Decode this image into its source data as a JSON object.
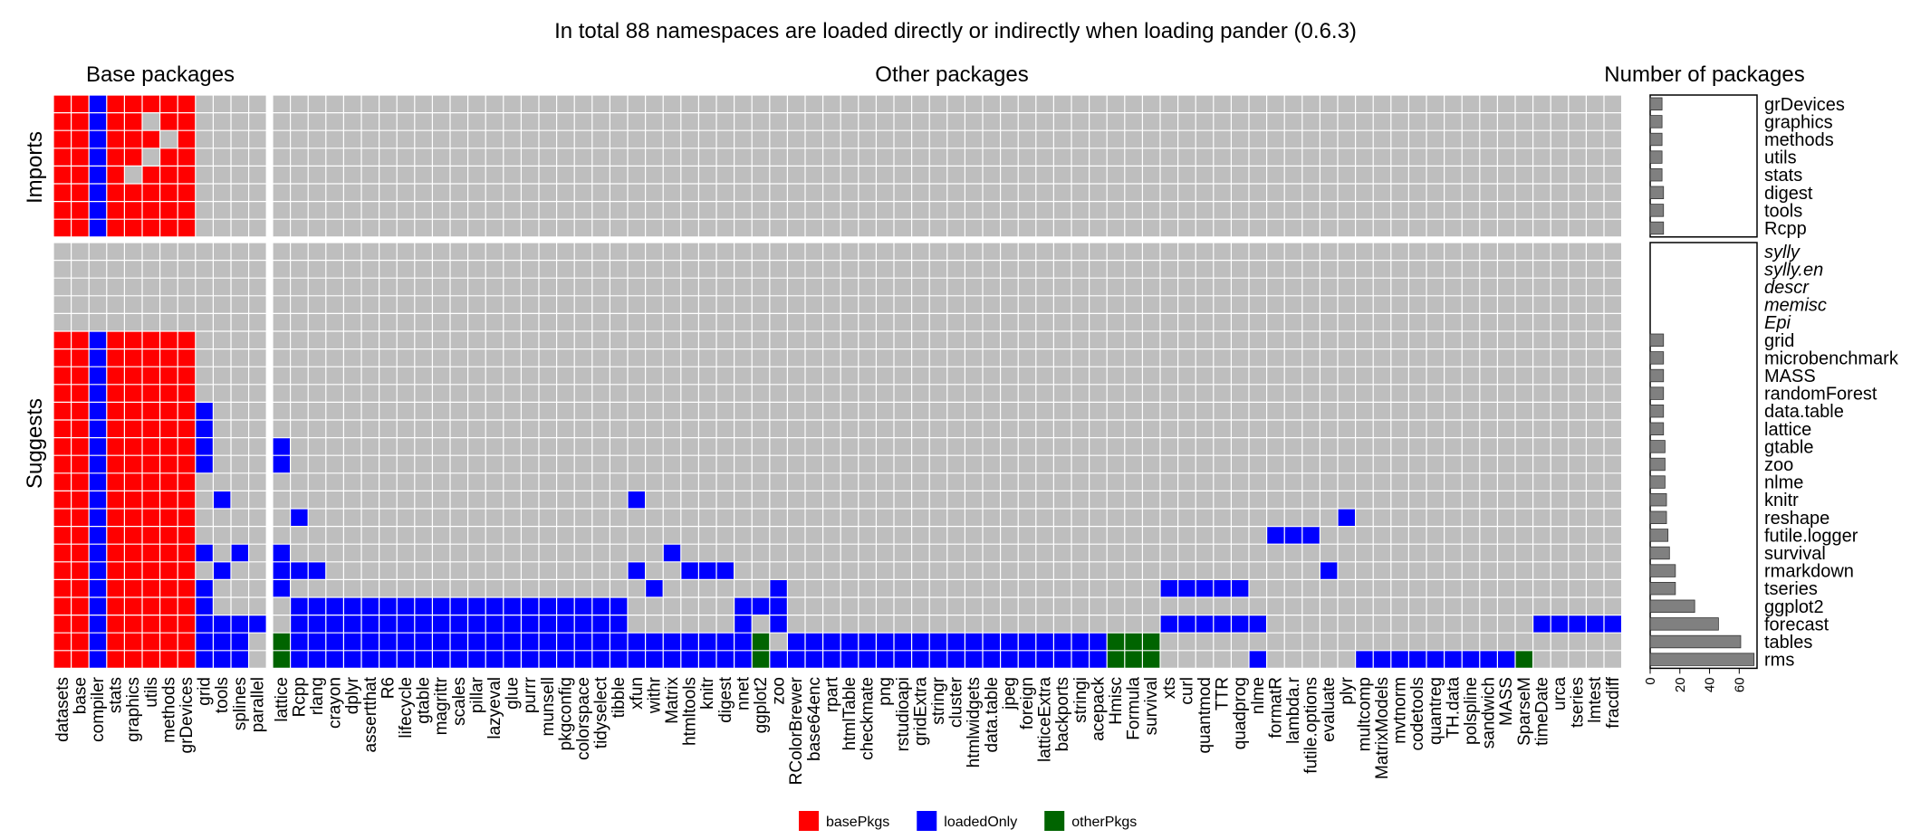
{
  "chart_data": {
    "type": "heatmap",
    "title": "In total 88 namespaces are loaded directly or indirectly when loading pander (0.6.3)",
    "panel_titles": {
      "base": "Base packages",
      "other": "Other packages",
      "count": "Number of packages"
    },
    "group_labels": {
      "imports": "Imports",
      "suggests": "Suggests"
    },
    "base_columns": [
      "datasets",
      "base",
      "compiler",
      "stats",
      "graphics",
      "utils",
      "methods",
      "grDevices",
      "grid",
      "tools",
      "splines",
      "parallel"
    ],
    "other_columns": [
      "lattice",
      "Rcpp",
      "rlang",
      "crayon",
      "dplyr",
      "assertthat",
      "R6",
      "lifecycle",
      "gtable",
      "magrittr",
      "scales",
      "pillar",
      "lazyeval",
      "glue",
      "purrr",
      "munsell",
      "pkgconfig",
      "colorspace",
      "tidyselect",
      "tibble",
      "xfun",
      "withr",
      "Matrix",
      "htmltools",
      "knitr",
      "digest",
      "nnet",
      "ggplot2",
      "zoo",
      "RColorBrewer",
      "base64enc",
      "rpart",
      "htmlTable",
      "checkmate",
      "png",
      "rstudioapi",
      "gridExtra",
      "stringr",
      "cluster",
      "htmlwidgets",
      "data.table",
      "jpeg",
      "foreign",
      "latticeExtra",
      "backports",
      "stringi",
      "acepack",
      "Hmisc",
      "Formula",
      "survival",
      "xts",
      "curl",
      "quantmod",
      "TTR",
      "quadprog",
      "nlme",
      "formatR",
      "lambda.r",
      "futile.options",
      "evaluate",
      "plyr",
      "multcomp",
      "MatrixModels",
      "mvtnorm",
      "codetools",
      "quantreg",
      "TH.data",
      "polspline",
      "sandwich",
      "MASS",
      "SparseM",
      "timeDate",
      "urca",
      "tseries",
      "lmtest",
      "fracdiff"
    ],
    "imports_rows": [
      "grDevices",
      "graphics",
      "methods",
      "utils",
      "stats",
      "digest",
      "tools",
      "Rcpp"
    ],
    "suggests_rows": [
      "sylly",
      "sylly.en",
      "descr",
      "memisc",
      "Epi",
      "grid",
      "microbenchmark",
      "MASS",
      "randomForest",
      "data.table",
      "lattice",
      "gtable",
      "zoo",
      "nlme",
      "knitr",
      "reshape",
      "futile.logger",
      "survival",
      "rmarkdown",
      "tseries",
      "ggplot2",
      "forecast",
      "tables",
      "rms"
    ],
    "unavailable_rows": [
      "sylly",
      "sylly.en",
      "descr",
      "memisc",
      "Epi"
    ],
    "legend": [
      {
        "key": "basePkgs",
        "label": "basePkgs",
        "color": "#ff0000"
      },
      {
        "key": "loadedOnly",
        "label": "loadedOnly",
        "color": "#0000ff"
      },
      {
        "key": "otherPkgs",
        "label": "otherPkgs",
        "color": "#006400"
      }
    ],
    "empty_color": "#bebebe",
    "bar_color": "#808080",
    "x_axis_ticks": [
      0,
      20,
      40,
      60
    ],
    "x_axis_range": [
      0,
      72
    ],
    "imports_counts": [
      8,
      8,
      8,
      8,
      8,
      9,
      9,
      9
    ],
    "suggests_counts": [
      0,
      0,
      0,
      0,
      0,
      9,
      9,
      9,
      9,
      9,
      9,
      10,
      10,
      10,
      11,
      11,
      12,
      13,
      17,
      17,
      30,
      46,
      61,
      70
    ],
    "cells": {
      "grDevices": {
        "b": "bbl",
        "o": []
      },
      "graphics": {
        "b": "bbl",
        "o": []
      },
      "methods": {
        "b": "bbl",
        "o": []
      },
      "utils": {
        "b": "bbl",
        "o": []
      },
      "stats": {
        "b": "bbl",
        "o": []
      },
      "digest": {
        "b": "bbl",
        "o": []
      },
      "tools": {
        "b": "bbl",
        "o": []
      },
      "Rcpp": {
        "b": "bbl",
        "o": []
      },
      "sylly": {
        "b": "",
        "o": []
      },
      "sylly.en": {
        "b": "",
        "o": []
      },
      "descr": {
        "b": "",
        "o": []
      },
      "memisc": {
        "b": "",
        "o": []
      },
      "Epi": {
        "b": "",
        "o": []
      },
      "grid": {
        "b": "bbl",
        "o": []
      },
      "microbenchmark": {
        "b": "bbl",
        "o": []
      },
      "MASS": {
        "b": "bbl",
        "o": []
      },
      "randomForest": {
        "b": "bbl",
        "o": []
      },
      "data.table": {
        "b": "bblL",
        "o": []
      },
      "lattice": {
        "b": "bblL",
        "o": []
      },
      "gtable": {
        "b": "bblL",
        "o": [
          0
        ]
      },
      "zoo": {
        "b": "bblL",
        "o": [
          0
        ]
      },
      "nlme": {
        "b": "bbl",
        "o": []
      },
      "knitr": {
        "b": "bblT",
        "o": [
          20
        ]
      },
      "reshape": {
        "b": "bbl",
        "o": [
          1,
          60
        ]
      },
      "futile.logger": {
        "b": "bbl",
        "o": [
          56,
          57,
          58
        ]
      },
      "survival": {
        "b": "bblLS",
        "o": [
          0,
          22
        ]
      },
      "rmarkdown": {
        "b": "bblT",
        "o": [
          0,
          1,
          2,
          20,
          23,
          24,
          25,
          59
        ]
      },
      "tseries": {
        "b": "bblL",
        "o": [
          0,
          21,
          28,
          50,
          51,
          52,
          53,
          54
        ]
      },
      "ggplot2": {
        "b": "bblL",
        "o": [
          1,
          2,
          3,
          4,
          5,
          6,
          7,
          8,
          9,
          10,
          11,
          12,
          13,
          14,
          15,
          16,
          17,
          18,
          19,
          26,
          27,
          28
        ]
      },
      "forecast": {
        "b": "bblLTSP",
        "o": [
          1,
          2,
          3,
          4,
          5,
          6,
          7,
          8,
          9,
          10,
          11,
          12,
          13,
          14,
          15,
          16,
          17,
          18,
          19,
          26,
          28,
          50,
          51,
          52,
          53,
          54,
          55,
          71,
          72,
          73,
          74,
          75
        ]
      },
      "tables": {
        "b": "bblLTS",
        "o": [
          0,
          1,
          2,
          3,
          4,
          5,
          6,
          7,
          8,
          9,
          10,
          11,
          12,
          13,
          14,
          15,
          16,
          17,
          18,
          19,
          20,
          21,
          22,
          23,
          24,
          25,
          26,
          27,
          29,
          30,
          31,
          32,
          33,
          34,
          35,
          36,
          37,
          38,
          39,
          40,
          41,
          42,
          43,
          44,
          45,
          46,
          47,
          48,
          49
        ]
      },
      "rms": {
        "b": "bblLTS",
        "o": [
          0,
          1,
          2,
          3,
          4,
          5,
          6,
          7,
          8,
          9,
          10,
          11,
          12,
          13,
          14,
          15,
          16,
          17,
          18,
          19,
          20,
          21,
          22,
          23,
          24,
          25,
          26,
          27,
          28,
          29,
          30,
          31,
          32,
          33,
          34,
          35,
          36,
          37,
          38,
          39,
          40,
          41,
          42,
          43,
          44,
          45,
          46,
          47,
          48,
          49,
          55,
          61,
          62,
          63,
          64,
          65,
          66,
          67,
          68,
          69,
          70
        ]
      }
    },
    "other_pkgs_cells": {
      "tables": [
        0,
        27,
        47,
        48,
        49
      ],
      "rms": [
        0,
        27,
        47,
        48,
        49,
        70
      ]
    },
    "imports_base_gaps": {
      "graphics": [
        5
      ],
      "methods": [
        6
      ],
      "utils": [
        5
      ],
      "stats": [
        4
      ]
    }
  }
}
